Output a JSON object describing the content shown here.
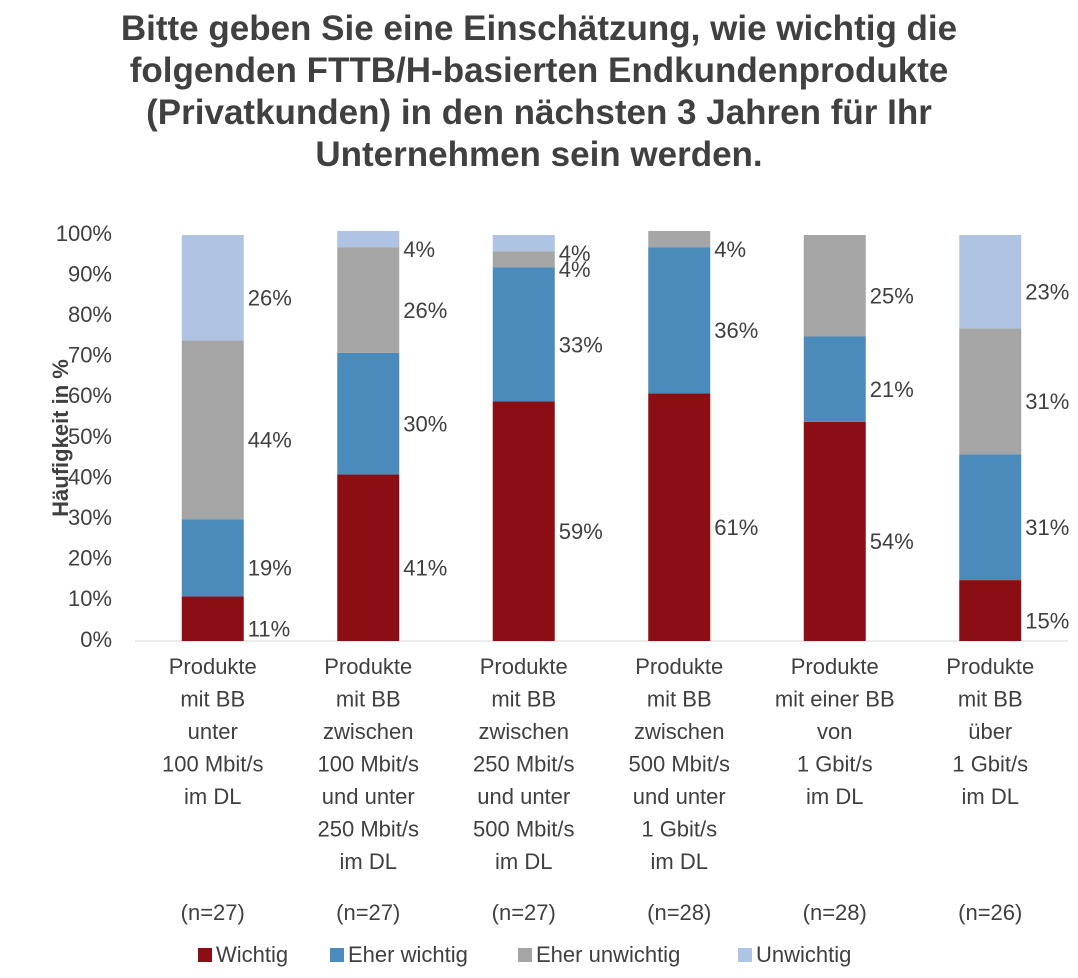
{
  "chart_data": {
    "type": "stacked_bar",
    "title": "Bitte geben Sie eine Einschätzung, wie wichtig die\nfolgenden FTTB/H-basierten Endkundenprodukte\n(Privatkunden) in den nächsten 3 Jahren für Ihr\nUnternehmen sein werden.",
    "ylabel": "Häufigkeit in %",
    "categories": [
      "Produkte\nmit BB\nunter\n100 Mbit/s\nim DL",
      "Produkte\nmit BB\nzwischen\n100 Mbit/s\nund unter\n250 Mbit/s\nim DL",
      "Produkte\nmit BB\nzwischen\n250 Mbit/s\nund unter\n500 Mbit/s\nim DL",
      "Produkte\nmit BB\nzwischen\n500 Mbit/s\nund unter\n1 Gbit/s\nim DL",
      "Produkte\nmit einer BB\nvon\n1 Gbit/s\nim DL",
      "Produkte\nmit BB\nüber\n1 Gbit/s\nim DL"
    ],
    "sample_sizes": [
      "(n=27)",
      "(n=27)",
      "(n=27)",
      "(n=28)",
      "(n=28)",
      "(n=26)"
    ],
    "series": [
      {
        "name": "Wichtig",
        "color": "#8b0e14",
        "values": [
          11,
          41,
          59,
          61,
          54,
          15
        ],
        "value_labels": [
          "11%",
          "41%",
          "59%",
          "61%",
          "54%",
          "15%"
        ]
      },
      {
        "name": "Eher wichtig",
        "color": "#4a8bbb",
        "values": [
          19,
          30,
          33,
          36,
          21,
          31
        ],
        "value_labels": [
          "19%",
          "30%",
          "33%",
          "36%",
          "21%",
          "31%"
        ]
      },
      {
        "name": "Eher unwichtig",
        "color": "#a5a5a5",
        "values": [
          44,
          26,
          4,
          4,
          25,
          31
        ],
        "value_labels": [
          "44%",
          "26%",
          "4%",
          "4%",
          "25%",
          "31%"
        ]
      },
      {
        "name": "Unwichtig",
        "color": "#aec4e2",
        "values": [
          26,
          4,
          4,
          null,
          null,
          23
        ],
        "value_labels": [
          "26%",
          "4%",
          "4%",
          null,
          null,
          "23%"
        ]
      }
    ],
    "ylim": [
      0,
      100
    ],
    "yticks": [
      {
        "value": 0,
        "label": "0%"
      },
      {
        "value": 10,
        "label": "10%"
      },
      {
        "value": 20,
        "label": "20%"
      },
      {
        "value": 30,
        "label": "30%"
      },
      {
        "value": 40,
        "label": "40%"
      },
      {
        "value": 50,
        "label": "50%"
      },
      {
        "value": 60,
        "label": "60%"
      },
      {
        "value": 70,
        "label": "70%"
      },
      {
        "value": 80,
        "label": "80%"
      },
      {
        "value": 90,
        "label": "90%"
      },
      {
        "value": 100,
        "label": "100%"
      }
    ],
    "legend": "bottom"
  }
}
